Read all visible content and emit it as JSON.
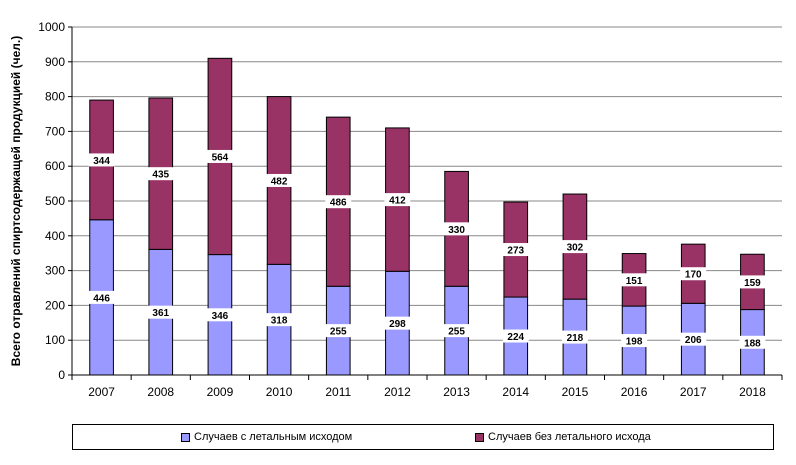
{
  "chart_data": {
    "type": "bar",
    "stacked": true,
    "categories": [
      "2007",
      "2008",
      "2009",
      "2010",
      "2011",
      "2012",
      "2013",
      "2014",
      "2015",
      "2016",
      "2017",
      "2018"
    ],
    "series": [
      {
        "name": "Случаев с летальным исходом",
        "color": "#9999ff",
        "values": [
          446,
          361,
          346,
          318,
          255,
          298,
          255,
          224,
          218,
          198,
          206,
          188
        ]
      },
      {
        "name": "Случаев без летального исхода",
        "color": "#993366",
        "values": [
          344,
          435,
          564,
          482,
          486,
          412,
          330,
          273,
          302,
          151,
          170,
          159
        ]
      }
    ],
    "ylabel": "Всего отравлений спиртсодержащей продукцией (чел.)",
    "ylim": [
      0,
      1000
    ],
    "yticks": [
      0,
      100,
      200,
      300,
      400,
      500,
      600,
      700,
      800,
      900,
      1000
    ],
    "grid": true,
    "legend_position": "bottom"
  }
}
